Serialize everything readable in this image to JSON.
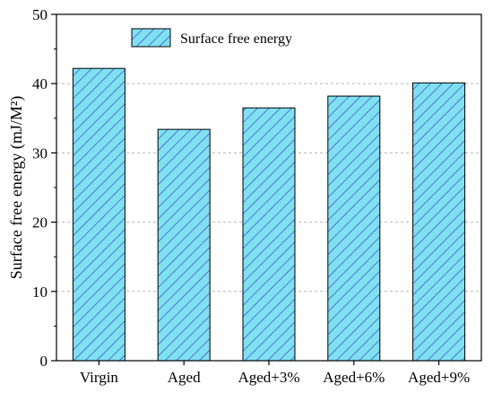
{
  "chart_data": {
    "type": "bar",
    "categories": [
      "Virgin",
      "Aged",
      "Aged+3%",
      "Aged+6%",
      "Aged+9%"
    ],
    "series": [
      {
        "name": "Surface free energy",
        "values": [
          42.2,
          33.4,
          36.5,
          38.2,
          40.1
        ]
      }
    ],
    "ylabel": "Surface free energy (mJ/M²)",
    "ylim": [
      0,
      50
    ],
    "yticks": [
      0,
      10,
      20,
      30,
      40,
      50
    ],
    "grid": true,
    "legend": "top-left",
    "colors": {
      "bar_fill": "#7fe0f0",
      "hatch": "#3a3ad0",
      "axis": "#000000",
      "grid": "#b5b5b5"
    }
  }
}
